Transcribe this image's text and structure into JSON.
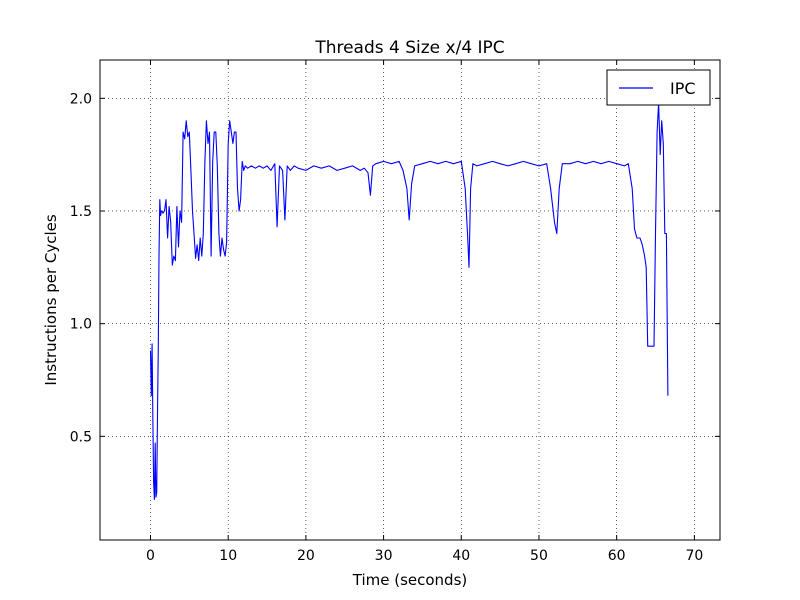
{
  "chart_data": {
    "type": "line",
    "title": "Threads 4 Size x/4 IPC",
    "xlabel": "Time (seconds)",
    "ylabel": "Instructions per Cycles",
    "xlim": [
      -6.5,
      73.3
    ],
    "ylim": [
      0.04,
      2.17
    ],
    "xticks": [
      0,
      10,
      20,
      30,
      40,
      50,
      60,
      70
    ],
    "yticks": [
      0.5,
      1.0,
      1.5,
      2.0
    ],
    "xtick_labels": [
      "0",
      "10",
      "20",
      "30",
      "40",
      "50",
      "60",
      "70"
    ],
    "ytick_labels": [
      "0.5",
      "1.0",
      "1.5",
      "2.0"
    ],
    "grid": true,
    "grid_style": "dotted",
    "legend": {
      "placement": "top-right",
      "entries": [
        "IPC"
      ]
    },
    "colors": {
      "IPC": "#0000ff"
    },
    "series": [
      {
        "name": "IPC",
        "x": [
          0.0,
          0.1,
          0.2,
          0.3,
          0.4,
          0.5,
          0.6,
          0.7,
          0.8,
          0.9,
          1.0,
          1.1,
          1.2,
          1.3,
          1.4,
          1.5,
          1.6,
          1.8,
          2.0,
          2.2,
          2.4,
          2.6,
          2.8,
          3.0,
          3.2,
          3.4,
          3.6,
          3.8,
          4.0,
          4.2,
          4.4,
          4.6,
          4.8,
          5.0,
          5.2,
          5.4,
          5.6,
          5.8,
          6.0,
          6.2,
          6.4,
          6.6,
          6.8,
          7.0,
          7.2,
          7.4,
          7.6,
          7.8,
          8.0,
          8.2,
          8.4,
          8.6,
          8.8,
          9.0,
          9.2,
          9.4,
          9.6,
          9.8,
          10.0,
          10.2,
          10.4,
          10.6,
          10.8,
          11.0,
          11.2,
          11.4,
          11.6,
          11.8,
          12.0,
          12.2,
          12.5,
          13.0,
          13.5,
          14.0,
          14.5,
          15.0,
          15.5,
          16.0,
          16.3,
          16.6,
          17.0,
          17.3,
          17.6,
          18.0,
          18.5,
          19.0,
          20.0,
          21.0,
          22.0,
          23.0,
          24.0,
          25.0,
          26.0,
          27.0,
          27.5,
          28.0,
          28.3,
          28.6,
          29.0,
          30.0,
          31.0,
          32.0,
          32.5,
          33.0,
          33.3,
          33.6,
          34.0,
          35.0,
          36.0,
          37.0,
          38.0,
          39.0,
          40.0,
          40.5,
          40.8,
          41.0,
          41.2,
          41.5,
          42.0,
          43.0,
          44.0,
          45.0,
          46.0,
          47.0,
          48.0,
          49.0,
          50.0,
          51.0,
          51.5,
          52.0,
          52.3,
          52.6,
          53.0,
          54.0,
          55.0,
          56.0,
          57.0,
          58.0,
          59.0,
          60.0,
          61.0,
          61.5,
          62.0,
          62.3,
          62.6,
          63.0,
          63.3,
          63.6,
          63.8,
          64.0,
          64.3,
          64.6,
          64.8,
          65.0,
          65.2,
          65.4,
          65.6,
          65.8,
          66.0,
          66.2,
          66.4,
          66.6
        ],
        "y": [
          0.88,
          0.68,
          0.91,
          0.6,
          0.3,
          0.22,
          0.47,
          0.23,
          0.25,
          0.6,
          0.9,
          1.3,
          1.55,
          1.48,
          1.5,
          1.5,
          1.49,
          1.5,
          1.55,
          1.38,
          1.52,
          1.45,
          1.26,
          1.3,
          1.28,
          1.52,
          1.34,
          1.5,
          1.45,
          1.85,
          1.82,
          1.9,
          1.83,
          1.85,
          1.68,
          1.5,
          1.4,
          1.29,
          1.35,
          1.28,
          1.38,
          1.3,
          1.4,
          1.72,
          1.9,
          1.8,
          1.85,
          1.3,
          1.72,
          1.85,
          1.85,
          1.7,
          1.4,
          1.3,
          1.38,
          1.33,
          1.3,
          1.36,
          1.8,
          1.9,
          1.85,
          1.8,
          1.85,
          1.85,
          1.6,
          1.5,
          1.55,
          1.72,
          1.68,
          1.7,
          1.69,
          1.7,
          1.69,
          1.7,
          1.69,
          1.7,
          1.68,
          1.71,
          1.43,
          1.7,
          1.68,
          1.46,
          1.7,
          1.68,
          1.7,
          1.69,
          1.68,
          1.7,
          1.69,
          1.7,
          1.68,
          1.69,
          1.7,
          1.68,
          1.69,
          1.67,
          1.57,
          1.7,
          1.71,
          1.72,
          1.71,
          1.72,
          1.68,
          1.6,
          1.46,
          1.62,
          1.7,
          1.71,
          1.72,
          1.71,
          1.72,
          1.71,
          1.72,
          1.6,
          1.4,
          1.25,
          1.6,
          1.71,
          1.7,
          1.71,
          1.72,
          1.71,
          1.7,
          1.71,
          1.72,
          1.71,
          1.7,
          1.71,
          1.6,
          1.45,
          1.4,
          1.6,
          1.71,
          1.71,
          1.72,
          1.71,
          1.72,
          1.71,
          1.72,
          1.71,
          1.7,
          1.71,
          1.6,
          1.42,
          1.38,
          1.38,
          1.35,
          1.3,
          1.25,
          0.9,
          0.9,
          0.9,
          0.9,
          1.4,
          1.85,
          1.98,
          1.75,
          1.9,
          1.8,
          1.4,
          1.4,
          0.68
        ]
      }
    ]
  }
}
